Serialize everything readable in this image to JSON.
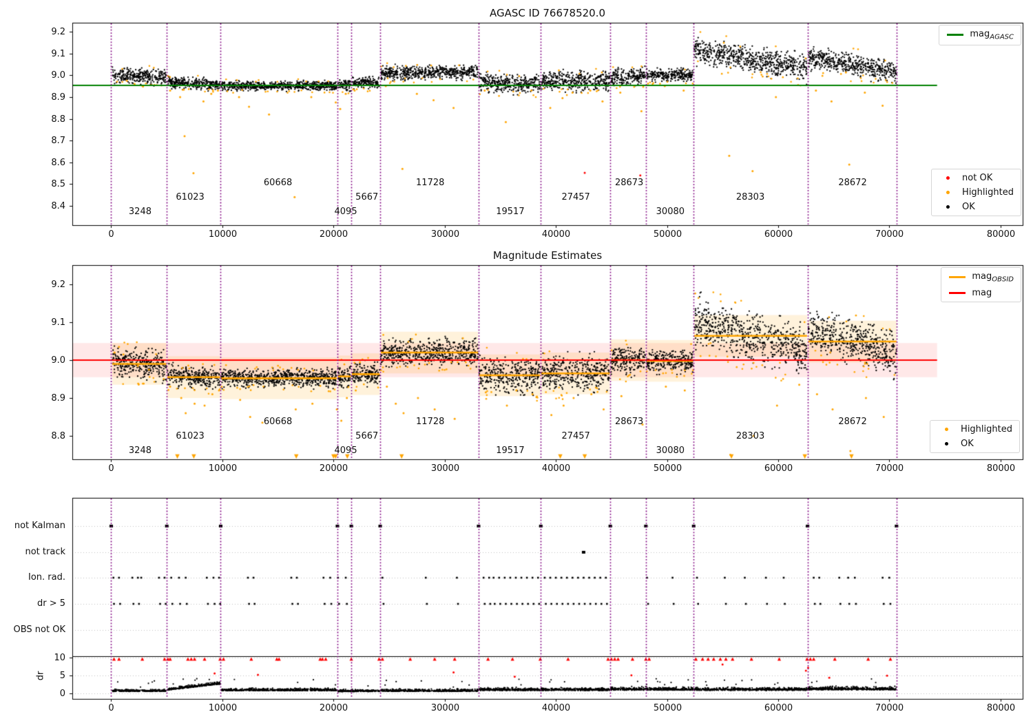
{
  "figure": {
    "colors": {
      "ok": "#000000",
      "highlighted": "#ffa500",
      "not_ok": "#ff0000",
      "mag_agasc_line": "#008000",
      "mag_obsid_line": "#ffa500",
      "mag_line": "#ff0000",
      "boundary_line": "#800080",
      "grid": "#bbbbbb"
    }
  },
  "chart_data": [
    {
      "id": "top",
      "type": "scatter",
      "title": "AGASC ID 76678520.0",
      "xlim": [
        -3500,
        82000
      ],
      "ylim": [
        8.3115,
        9.2411
      ],
      "xticks": [
        0,
        10000,
        20000,
        30000,
        40000,
        50000,
        60000,
        70000,
        80000
      ],
      "yticks": [
        8.4,
        8.5,
        8.6,
        8.7,
        8.8,
        8.9,
        9.0,
        9.1,
        9.2
      ],
      "mag_agasc": 8.953,
      "hline_extent": [
        -3500,
        74300
      ],
      "boundaries": [
        0,
        5000,
        9850,
        20350,
        21600,
        24200,
        33050,
        38650,
        44900,
        48100,
        52400,
        62650,
        70650
      ],
      "segments": [
        {
          "obsid": "3248",
          "t0": 100,
          "t1": 4950,
          "mag": 8.995,
          "spread": 0.016,
          "trend": -0.01,
          "label_t": 2600,
          "label_row": 1
        },
        {
          "obsid": "61023",
          "t0": 5050,
          "t1": 9800,
          "mag": 8.962,
          "spread": 0.012,
          "trend": -0.012,
          "label_t": 7100,
          "label_row": 2
        },
        {
          "obsid": "60668",
          "t0": 9900,
          "t1": 20300,
          "mag": 8.951,
          "spread": 0.01,
          "trend": 0.0,
          "label_t": 15000,
          "label_row": 3
        },
        {
          "obsid": "4095",
          "t0": 20400,
          "t1": 21550,
          "mag": 8.957,
          "spread": 0.013,
          "trend": 0.0,
          "label_t": 21100,
          "label_row": 1
        },
        {
          "obsid": "5667",
          "t0": 21650,
          "t1": 24150,
          "mag": 8.967,
          "spread": 0.013,
          "trend": 0.0,
          "label_t": 23000,
          "label_row": 2
        },
        {
          "obsid": "11728",
          "t0": 24250,
          "t1": 33000,
          "mag": 9.013,
          "spread": 0.015,
          "trend": 0.005,
          "label_t": 28700,
          "label_row": 3
        },
        {
          "obsid": "19517",
          "t0": 33100,
          "t1": 38600,
          "mag": 8.962,
          "spread": 0.02,
          "trend": -0.01,
          "label_t": 35900,
          "label_row": 1
        },
        {
          "obsid": "27457",
          "t0": 38700,
          "t1": 44850,
          "mag": 8.972,
          "spread": 0.021,
          "trend": 0.0,
          "label_t": 41800,
          "label_row": 2
        },
        {
          "obsid": "28673",
          "t0": 44950,
          "t1": 48050,
          "mag": 8.994,
          "spread": 0.017,
          "trend": 0.01,
          "label_t": 46600,
          "label_row": 3
        },
        {
          "obsid": "30080",
          "t0": 48150,
          "t1": 52350,
          "mag": 9.0,
          "spread": 0.013,
          "trend": 0.0,
          "label_t": 50300,
          "label_row": 1
        },
        {
          "obsid": "28303",
          "t0": 52450,
          "t1": 62600,
          "mag": 9.073,
          "spread": 0.028,
          "trend": -0.085,
          "label_t": 57500,
          "label_row": 2
        },
        {
          "obsid": "28672",
          "t0": 62700,
          "t1": 70650,
          "mag": 9.048,
          "spread": 0.024,
          "trend": -0.07,
          "label_t": 66700,
          "label_row": 3
        }
      ],
      "highlighted": [
        [
          1400,
          8.975
        ],
        [
          2100,
          8.96
        ],
        [
          3600,
          8.955
        ],
        [
          5300,
          8.93
        ],
        [
          6200,
          8.9
        ],
        [
          6600,
          8.72
        ],
        [
          7400,
          8.55
        ],
        [
          8300,
          8.88
        ],
        [
          9000,
          8.915
        ],
        [
          9600,
          8.93
        ],
        [
          11500,
          8.9
        ],
        [
          12400,
          8.855
        ],
        [
          14200,
          8.82
        ],
        [
          16500,
          8.44
        ],
        [
          18000,
          8.9
        ],
        [
          20200,
          8.875
        ],
        [
          20600,
          8.845
        ],
        [
          21100,
          8.915
        ],
        [
          21900,
          8.93
        ],
        [
          24700,
          8.95
        ],
        [
          26200,
          8.57
        ],
        [
          27500,
          8.915
        ],
        [
          29000,
          8.885
        ],
        [
          30800,
          8.85
        ],
        [
          33600,
          8.93
        ],
        [
          35500,
          8.785
        ],
        [
          37800,
          8.93
        ],
        [
          39500,
          8.85
        ],
        [
          40600,
          8.895
        ],
        [
          41500,
          8.92
        ],
        [
          43100,
          8.93
        ],
        [
          44200,
          8.88
        ],
        [
          45800,
          8.92
        ],
        [
          47700,
          8.835
        ],
        [
          49800,
          8.95
        ],
        [
          51500,
          8.93
        ],
        [
          55600,
          8.63
        ],
        [
          57700,
          8.56
        ],
        [
          59800,
          8.9
        ],
        [
          61800,
          8.955
        ],
        [
          63400,
          8.93
        ],
        [
          64800,
          8.88
        ],
        [
          66400,
          8.59
        ],
        [
          67800,
          8.92
        ],
        [
          69400,
          8.86
        ]
      ],
      "not_ok": [
        [
          42600,
          8.552
        ],
        [
          47600,
          8.54
        ]
      ],
      "legends": {
        "line": {
          "label": "mag",
          "sub": "AGASC",
          "color": "#008000"
        },
        "markers": [
          {
            "label": "not OK",
            "color": "#ff0000"
          },
          {
            "label": "Highlighted",
            "color": "#ffa500"
          },
          {
            "label": "OK",
            "color": "#000000"
          }
        ]
      }
    },
    {
      "id": "middle",
      "type": "scatter",
      "title": "Magnitude Estimates",
      "xlim": [
        -3500,
        82000
      ],
      "ylim": [
        8.7382,
        9.2509
      ],
      "xticks": [
        0,
        10000,
        20000,
        30000,
        40000,
        50000,
        60000,
        70000,
        80000
      ],
      "yticks": [
        8.8,
        8.9,
        9.0,
        9.1,
        9.2
      ],
      "mag": 9.0,
      "mag_err": 0.045,
      "obsid_band_halfwidth": 0.055,
      "hline_extent": [
        -3500,
        74300
      ],
      "boundaries": [
        0,
        5000,
        9850,
        20350,
        21600,
        24200,
        33050,
        38650,
        44900,
        48100,
        52400,
        62650,
        70650
      ],
      "segments": [
        {
          "obsid": "3248",
          "t0": 100,
          "t1": 4950,
          "mag": 8.99,
          "spread": 0.018,
          "trend": -0.01,
          "label_t": 2600,
          "label_row": 1
        },
        {
          "obsid": "61023",
          "t0": 5050,
          "t1": 9800,
          "mag": 8.955,
          "spread": 0.013,
          "trend": -0.012,
          "label_t": 7100,
          "label_row": 2
        },
        {
          "obsid": "60668",
          "t0": 9900,
          "t1": 20300,
          "mag": 8.952,
          "spread": 0.011,
          "trend": 0.0,
          "label_t": 15000,
          "label_row": 3
        },
        {
          "obsid": "4095",
          "t0": 20400,
          "t1": 21550,
          "mag": 8.957,
          "spread": 0.014,
          "trend": 0.0,
          "label_t": 21100,
          "label_row": 1
        },
        {
          "obsid": "5667",
          "t0": 21650,
          "t1": 24150,
          "mag": 8.963,
          "spread": 0.014,
          "trend": 0.0,
          "label_t": 23000,
          "label_row": 2
        },
        {
          "obsid": "11728",
          "t0": 24250,
          "t1": 33000,
          "mag": 9.02,
          "spread": 0.016,
          "trend": 0.005,
          "label_t": 28700,
          "label_row": 3
        },
        {
          "obsid": "19517",
          "t0": 33100,
          "t1": 38600,
          "mag": 8.96,
          "spread": 0.022,
          "trend": -0.01,
          "label_t": 35900,
          "label_row": 1
        },
        {
          "obsid": "27457",
          "t0": 38700,
          "t1": 44850,
          "mag": 8.965,
          "spread": 0.022,
          "trend": 0.0,
          "label_t": 41800,
          "label_row": 2
        },
        {
          "obsid": "28673",
          "t0": 44950,
          "t1": 48050,
          "mag": 9.0,
          "spread": 0.018,
          "trend": 0.01,
          "label_t": 46600,
          "label_row": 3
        },
        {
          "obsid": "30080",
          "t0": 48150,
          "t1": 52350,
          "mag": 8.998,
          "spread": 0.014,
          "trend": 0.0,
          "label_t": 50300,
          "label_row": 1
        },
        {
          "obsid": "28303",
          "t0": 52450,
          "t1": 62600,
          "mag": 9.064,
          "spread": 0.03,
          "trend": -0.085,
          "label_t": 57500,
          "label_row": 2
        },
        {
          "obsid": "28672",
          "t0": 62700,
          "t1": 70650,
          "mag": 9.049,
          "spread": 0.026,
          "trend": -0.07,
          "label_t": 66700,
          "label_row": 3
        }
      ],
      "highlighted": [
        [
          300,
          9.02
        ],
        [
          700,
          9.035
        ],
        [
          1100,
          9.015
        ],
        [
          1600,
          9.0
        ],
        [
          2400,
          8.985
        ],
        [
          3400,
          8.975
        ],
        [
          5300,
          8.93
        ],
        [
          6300,
          8.9
        ],
        [
          6700,
          8.86
        ],
        [
          7500,
          8.885
        ],
        [
          8400,
          8.88
        ],
        [
          9100,
          8.91
        ],
        [
          9700,
          8.92
        ],
        [
          11600,
          8.895
        ],
        [
          12500,
          8.85
        ],
        [
          13600,
          8.835
        ],
        [
          16600,
          8.87
        ],
        [
          18100,
          8.885
        ],
        [
          20300,
          8.87
        ],
        [
          20700,
          8.84
        ],
        [
          21200,
          8.9
        ],
        [
          22000,
          8.92
        ],
        [
          24800,
          8.93
        ],
        [
          25600,
          8.885
        ],
        [
          26300,
          8.86
        ],
        [
          27600,
          8.9
        ],
        [
          29100,
          8.87
        ],
        [
          30900,
          8.845
        ],
        [
          33700,
          8.915
        ],
        [
          35600,
          8.88
        ],
        [
          37900,
          8.91
        ],
        [
          39600,
          8.855
        ],
        [
          40700,
          8.88
        ],
        [
          41600,
          8.9
        ],
        [
          43200,
          8.91
        ],
        [
          44300,
          8.87
        ],
        [
          45900,
          8.905
        ],
        [
          47800,
          8.83
        ],
        [
          49900,
          8.93
        ],
        [
          51600,
          8.92
        ],
        [
          55700,
          8.75
        ],
        [
          57800,
          8.8
        ],
        [
          59900,
          8.88
        ],
        [
          61900,
          8.935
        ],
        [
          63500,
          8.91
        ],
        [
          64900,
          8.87
        ],
        [
          66500,
          8.76
        ],
        [
          67900,
          8.9
        ],
        [
          69500,
          8.85
        ]
      ],
      "clipped_low": [
        5950,
        7430,
        16650,
        20000,
        20190,
        21240,
        26130,
        40400,
        42600,
        55800,
        62400,
        66600
      ],
      "legends": {
        "lines": [
          {
            "label": "mag",
            "sub": "OBSID",
            "color": "#ffa500"
          },
          {
            "label": "mag",
            "sub": "",
            "color": "#ff0000"
          }
        ],
        "markers": [
          {
            "label": "Highlighted",
            "color": "#ffa500"
          },
          {
            "label": "OK",
            "color": "#000000"
          }
        ]
      }
    },
    {
      "id": "bottom",
      "type": "scatter",
      "rows": [
        "not Kalman",
        "not track",
        "Ion. rad.",
        "dr > 5",
        "OBS not OK"
      ],
      "dr_axis": {
        "label": "dr",
        "ticks": [
          0,
          5,
          10
        ]
      },
      "xlim": [
        -3500,
        82000
      ],
      "xticks": [
        0,
        10000,
        20000,
        30000,
        40000,
        50000,
        60000,
        70000,
        80000
      ],
      "boundaries": [
        0,
        5000,
        9850,
        20350,
        21600,
        24200,
        33050,
        38650,
        44900,
        48100,
        52400,
        62650,
        70650
      ],
      "not_kalman": [
        0,
        5000,
        9850,
        20350,
        21600,
        24200,
        33050,
        38650,
        44900,
        48100,
        52400,
        62650,
        70650
      ],
      "not_track": [
        42500
      ],
      "ion_rad": [
        200,
        700,
        1900,
        2400,
        2700,
        4300,
        4800,
        5400,
        6100,
        6700,
        8600,
        9200,
        9700,
        12300,
        12800,
        16200,
        16700,
        19100,
        19700,
        20400,
        21100,
        24400,
        28300,
        31100,
        33500,
        34000,
        34400,
        34900,
        35400,
        35900,
        36400,
        36900,
        37400,
        37900,
        38400,
        39000,
        39500,
        40000,
        40500,
        41000,
        41500,
        42000,
        42500,
        43000,
        43500,
        44000,
        44500,
        48200,
        50500,
        52700,
        55200,
        57000,
        58900,
        60500,
        63200,
        63700,
        65500,
        66300,
        66900,
        69400,
        70000
      ],
      "dr_gt5": [
        250,
        800,
        2000,
        2500,
        4400,
        4900,
        5500,
        6200,
        6800,
        8700,
        9300,
        9800,
        12400,
        12900,
        16300,
        16800,
        19200,
        19800,
        20500,
        21200,
        24500,
        28400,
        31200,
        33600,
        34100,
        34500,
        35000,
        35500,
        36000,
        36500,
        37000,
        37500,
        38000,
        38500,
        39100,
        39600,
        40100,
        40600,
        41100,
        41600,
        42100,
        42600,
        43100,
        43600,
        44100,
        44600,
        48300,
        50600,
        52800,
        55300,
        57100,
        59000,
        60600,
        63300,
        63800,
        65600,
        66400,
        67000,
        69500,
        70100
      ],
      "obs_not_ok": [],
      "dr_clipped": [
        250,
        700,
        2800,
        4800,
        5100,
        5300,
        6900,
        7200,
        7500,
        8400,
        9800,
        10100,
        12600,
        14900,
        15100,
        18800,
        19000,
        19300,
        21600,
        24100,
        24400,
        26900,
        29100,
        30900,
        33900,
        36100,
        38600,
        41100,
        44700,
        45000,
        45300,
        45600,
        46900,
        48100,
        48400,
        52600,
        53200,
        53700,
        54200,
        54800,
        55300,
        55900,
        57600,
        60100,
        62600,
        62900,
        63200,
        65100,
        68100,
        70100
      ],
      "dr_red": [
        [
          9300,
          5.6
        ],
        [
          13200,
          5.2
        ],
        [
          30800,
          5.9
        ],
        [
          36300,
          4.7
        ],
        [
          46800,
          5.1
        ],
        [
          55000,
          8.1
        ],
        [
          62500,
          6.4
        ],
        [
          62700,
          7.2
        ],
        [
          64600,
          4.4
        ],
        [
          69800,
          5.0
        ]
      ],
      "dr_profile": [
        {
          "t0": 100,
          "t1": 4950,
          "base": 0.55,
          "spread": 0.25,
          "rise": 0
        },
        {
          "t0": 5050,
          "t1": 9800,
          "base": 0.9,
          "spread": 0.3,
          "rise": 2.6
        },
        {
          "t0": 9900,
          "t1": 20300,
          "base": 0.75,
          "spread": 0.3,
          "rise": 0
        },
        {
          "t0": 20400,
          "t1": 24150,
          "base": 0.5,
          "spread": 0.25,
          "rise": 0
        },
        {
          "t0": 24250,
          "t1": 33000,
          "base": 0.55,
          "spread": 0.3,
          "rise": 0
        },
        {
          "t0": 33100,
          "t1": 44850,
          "base": 0.8,
          "spread": 0.35,
          "rise": 0
        },
        {
          "t0": 44950,
          "t1": 52350,
          "base": 0.9,
          "spread": 0.4,
          "rise": 0
        },
        {
          "t0": 52450,
          "t1": 62600,
          "base": 0.85,
          "spread": 0.35,
          "rise": 0
        },
        {
          "t0": 62700,
          "t1": 70650,
          "base": 1.0,
          "spread": 0.4,
          "rise": 0
        }
      ]
    }
  ]
}
